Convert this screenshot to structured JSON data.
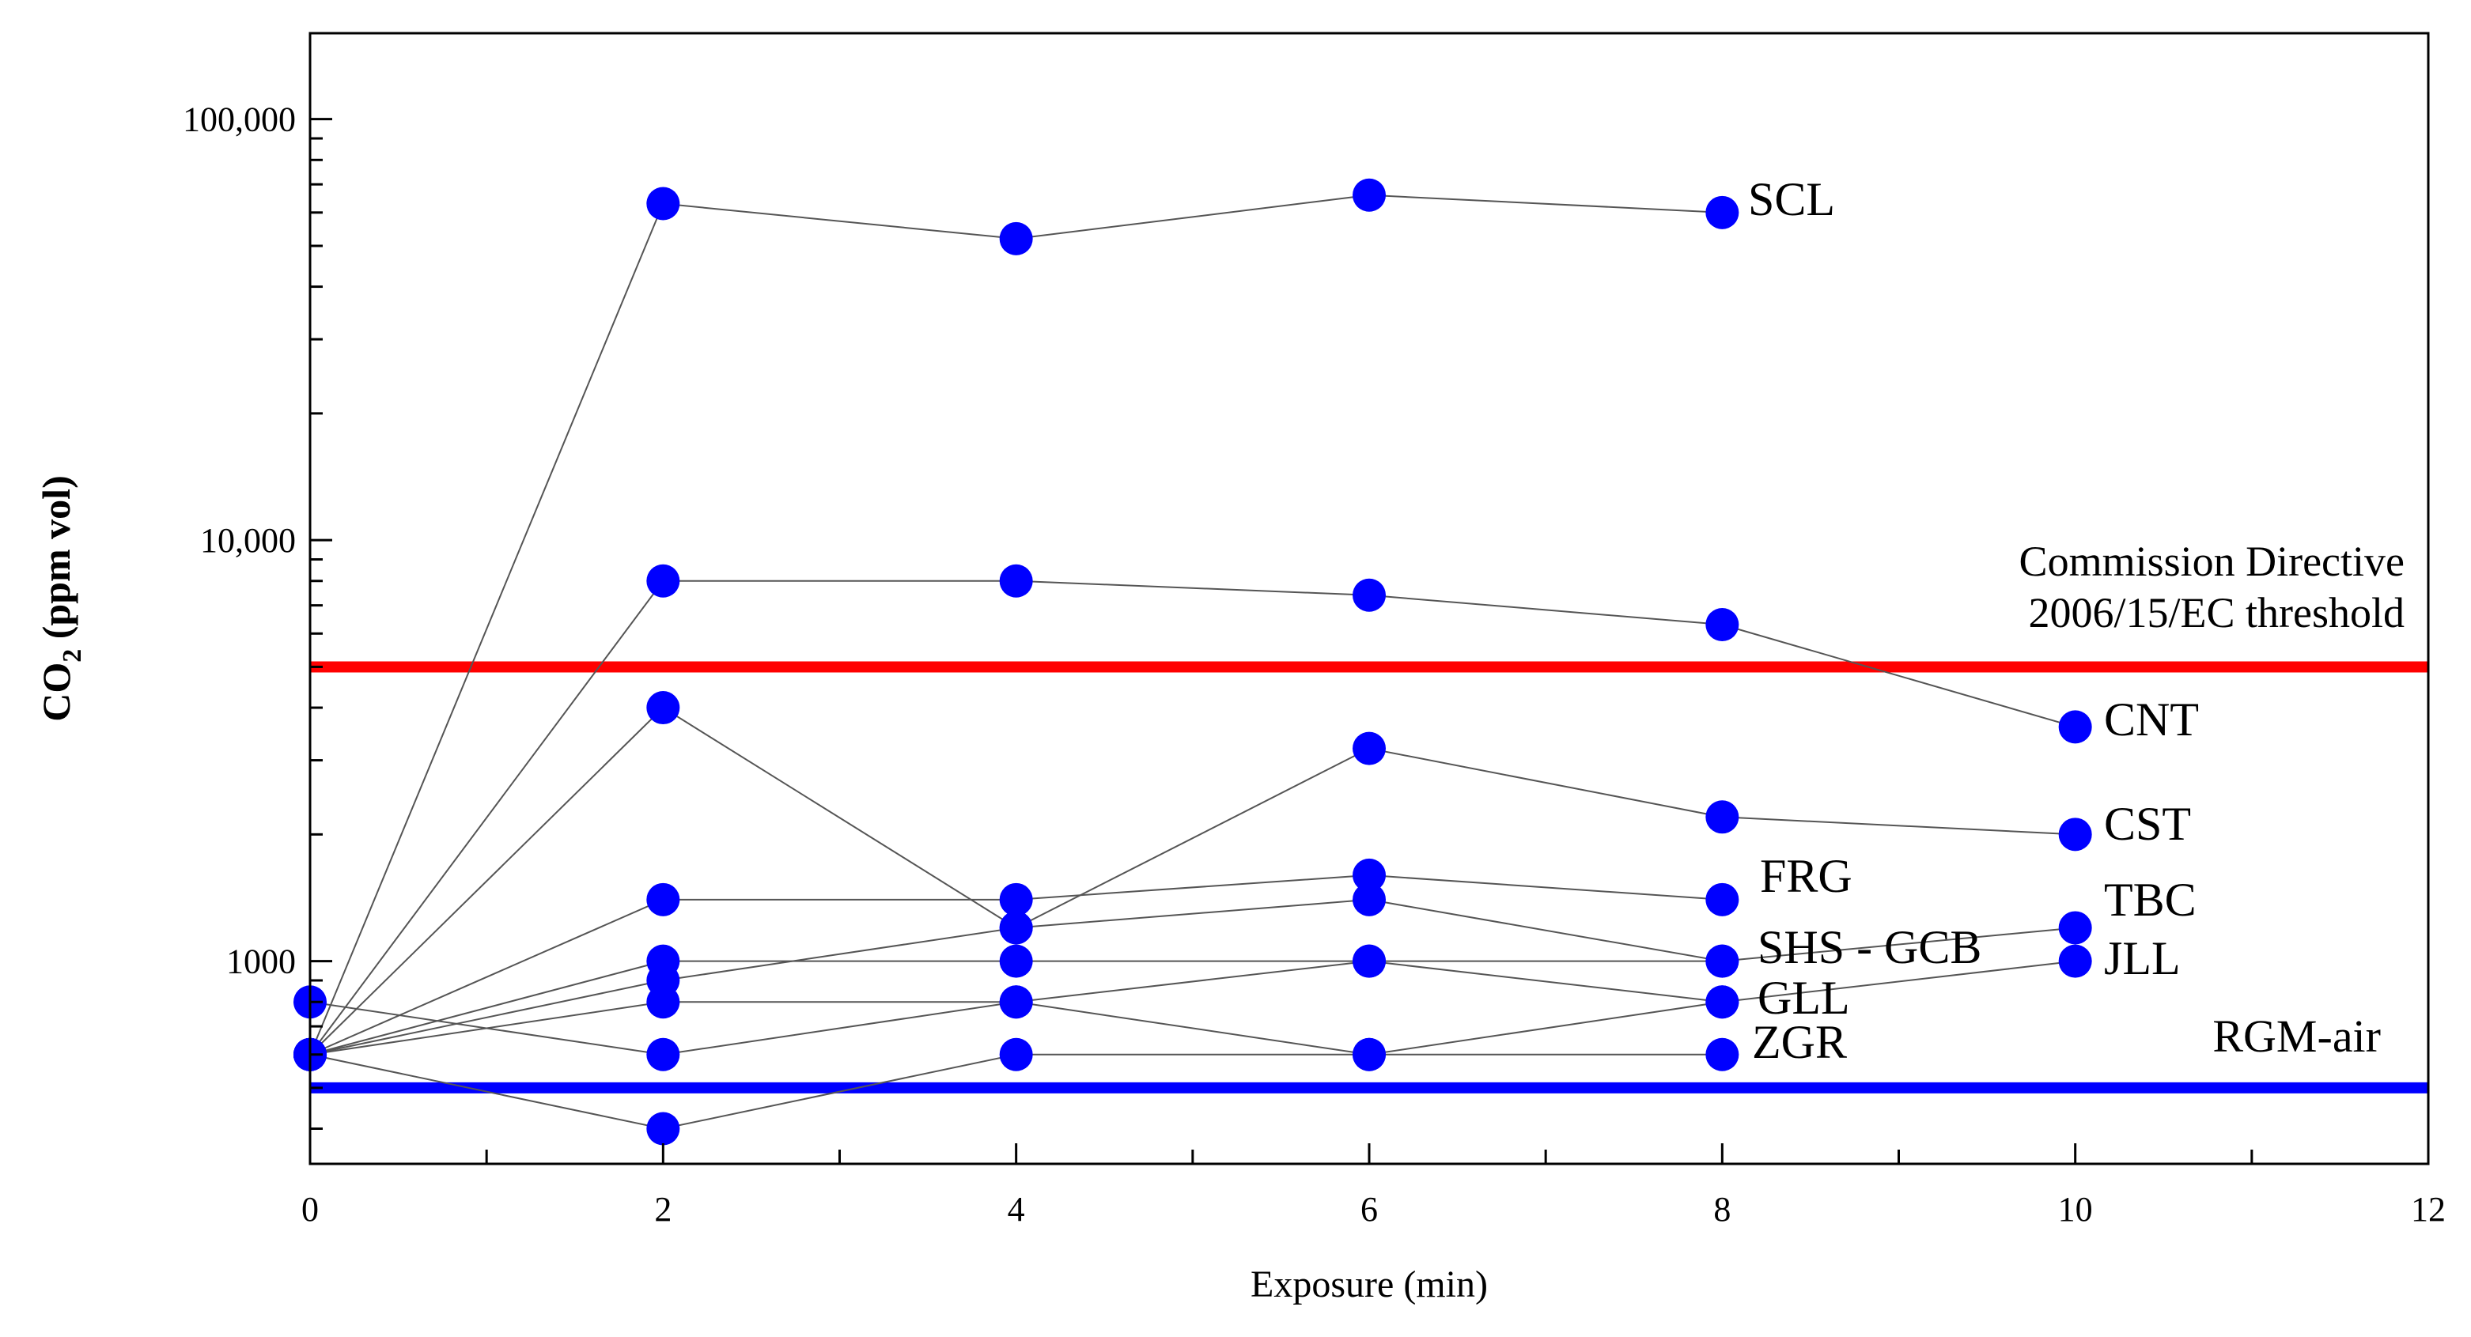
{
  "chart_data": {
    "type": "line",
    "xlabel": "Exposure (min)",
    "ylabel_main": "CO",
    "ylabel_sub": "2",
    "ylabel_rest": " (ppm vol)",
    "xlim": [
      0,
      12
    ],
    "ylim": [
      330,
      160000
    ],
    "yscale": "log",
    "x_ticks": [
      0,
      2,
      4,
      6,
      8,
      10,
      12
    ],
    "x_tick_labels": [
      "0",
      "2",
      "4",
      "6",
      "8",
      "10",
      "12"
    ],
    "y_ticks": [
      1000,
      10000,
      100000
    ],
    "y_tick_labels": [
      "1000",
      "10,000",
      "100,000"
    ],
    "series": [
      {
        "name": "SCL",
        "x": [
          0,
          2,
          4,
          6,
          8
        ],
        "values": [
          600,
          63000,
          52000,
          66000,
          60000
        ]
      },
      {
        "name": "CNT",
        "x": [
          0,
          2,
          4,
          6,
          8,
          10
        ],
        "values": [
          600,
          8000,
          8000,
          7400,
          6300,
          3600
        ]
      },
      {
        "name": "CST",
        "x": [
          0,
          2,
          4,
          6,
          8,
          10
        ],
        "values": [
          600,
          4000,
          1200,
          3200,
          2200,
          2000
        ]
      },
      {
        "name": "FRG",
        "x": [
          0,
          2,
          4,
          6,
          8
        ],
        "values": [
          600,
          1400,
          1400,
          1600,
          1400
        ]
      },
      {
        "name": "TBC",
        "x": [
          0,
          2,
          4,
          6,
          8,
          10
        ],
        "values": [
          600,
          900,
          1200,
          1400,
          1000,
          1200
        ]
      },
      {
        "name": "SHS - GCB",
        "x": [
          0,
          2,
          4,
          6,
          8
        ],
        "values": [
          600,
          1000,
          1000,
          1000,
          1000
        ]
      },
      {
        "name": "JLL",
        "x": [
          0,
          2,
          4,
          6,
          8,
          10
        ],
        "values": [
          600,
          800,
          800,
          1000,
          800,
          1000
        ]
      },
      {
        "name": "GLL",
        "x": [
          0,
          2,
          4,
          6,
          8
        ],
        "values": [
          800,
          600,
          800,
          600,
          800
        ]
      },
      {
        "name": "ZGR",
        "x": [
          0,
          2,
          4,
          6,
          8
        ],
        "values": [
          600,
          400,
          600,
          600,
          600
        ]
      }
    ],
    "reference_lines": [
      {
        "name": "Commission Directive 2006/15/EC threshold",
        "label_line1": "Commission Directive",
        "label_line2": "2006/15/EC threshold",
        "value": 5000,
        "color": "#ff0000"
      },
      {
        "name": "RGM-air",
        "label": "RGM-air",
        "value": 500,
        "color": "#0000ff"
      }
    ],
    "marker_color": "#0000ff",
    "line_color": "#555555"
  }
}
